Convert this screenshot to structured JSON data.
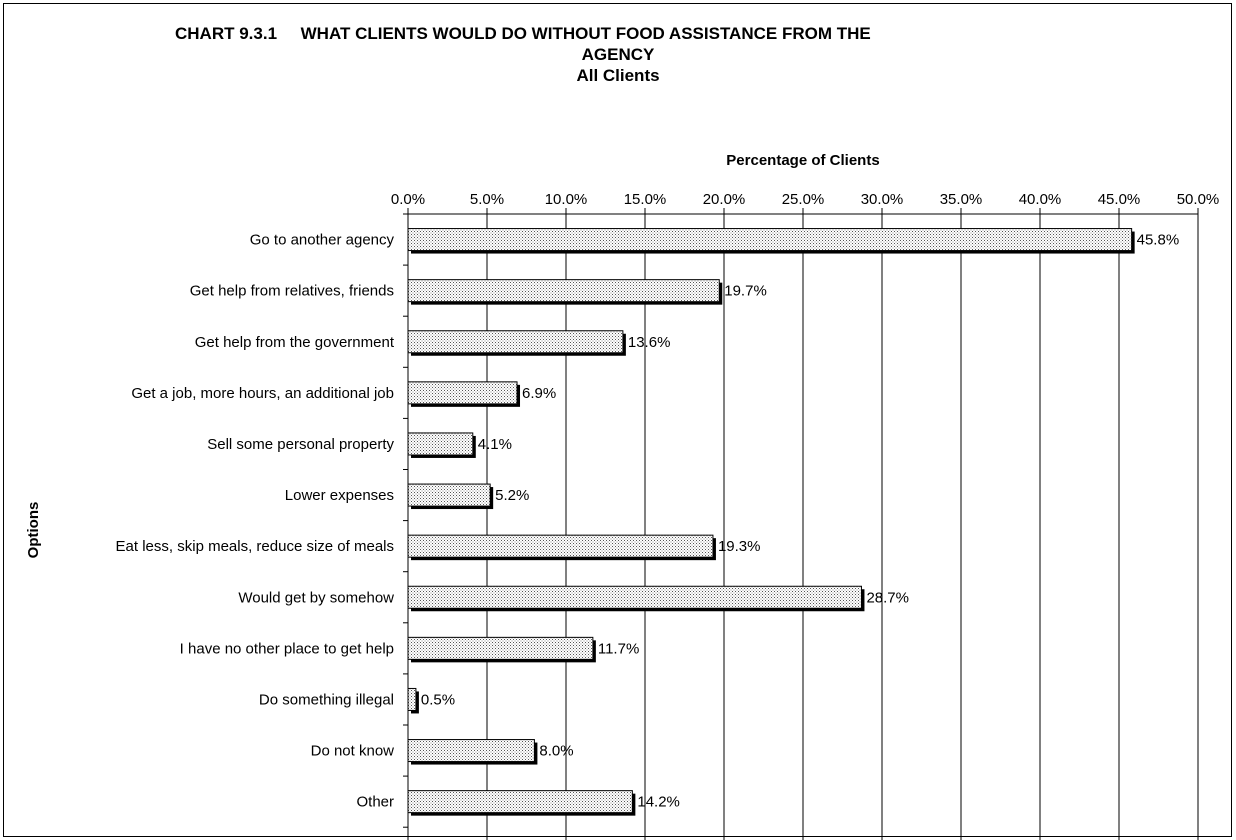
{
  "chart_data": {
    "type": "bar",
    "orientation": "horizontal",
    "title_line1": "CHART 9.3.1     WHAT CLIENTS WOULD DO WITHOUT FOOD ASSISTANCE FROM THE",
    "title_line2": "AGENCY",
    "subtitle": "All Clients",
    "xlabel": "Percentage of Clients",
    "ylabel": "Options",
    "xlim": [
      0,
      50
    ],
    "x_ticks": [
      "0.0%",
      "5.0%",
      "10.0%",
      "15.0%",
      "20.0%",
      "25.0%",
      "30.0%",
      "35.0%",
      "40.0%",
      "45.0%",
      "50.0%"
    ],
    "x_axis_position": "top",
    "grid": true,
    "categories": [
      "Go to another agency",
      "Get help from relatives, friends",
      "Get help from the government",
      "Get a job, more hours, an additional job",
      "Sell some personal property",
      "Lower expenses",
      "Eat less, skip meals, reduce size of meals",
      "Would get by somehow",
      "I have no other place to get help",
      "Do something illegal",
      "Do not know",
      "Other"
    ],
    "values": [
      45.8,
      19.7,
      13.6,
      6.9,
      4.1,
      5.2,
      19.3,
      28.7,
      11.7,
      0.5,
      8.0,
      14.2
    ],
    "value_labels": [
      "45.8%",
      "19.7%",
      "13.6%",
      "6.9%",
      "4.1%",
      "5.2%",
      "19.3%",
      "28.7%",
      "11.7%",
      "0.5%",
      "8.0%",
      "14.2%"
    ],
    "bar_fill": "#e6e6e6",
    "bar_edge": "#000000"
  }
}
